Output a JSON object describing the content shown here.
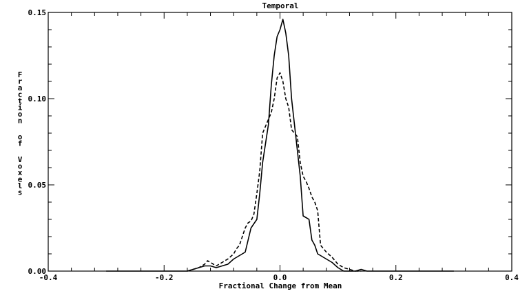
{
  "chart_data": {
    "type": "line",
    "title": "Temporal",
    "xlabel": "Fractional Change from Mean",
    "ylabel": "Fraction of Voxels",
    "xlim": [
      -0.4,
      0.4
    ],
    "ylim": [
      0.0,
      0.15
    ],
    "x_ticks": [
      -0.4,
      -0.2,
      0.0,
      0.2,
      0.4
    ],
    "x_tick_labels": [
      "-0.4",
      "-0.2",
      "0.0",
      "0.2",
      "0.4"
    ],
    "y_ticks": [
      0.0,
      0.05,
      0.1,
      0.15
    ],
    "y_tick_labels": [
      "0.00",
      "0.05",
      "0.10",
      "0.15"
    ],
    "grid": false,
    "series": [
      {
        "style": "solid",
        "x": [
          -0.3,
          -0.28,
          -0.26,
          -0.24,
          -0.22,
          -0.2,
          -0.18,
          -0.16,
          -0.15,
          -0.14,
          -0.13,
          -0.12,
          -0.11,
          -0.1,
          -0.09,
          -0.08,
          -0.075,
          -0.07,
          -0.06,
          -0.055,
          -0.05,
          -0.04,
          -0.035,
          -0.03,
          -0.02,
          -0.015,
          -0.01,
          -0.005,
          0.0,
          0.005,
          0.01,
          0.015,
          0.02,
          0.03,
          0.035,
          0.04,
          0.045,
          0.05,
          0.055,
          0.06,
          0.065,
          0.07,
          0.08,
          0.09,
          0.1,
          0.11,
          0.12,
          0.13,
          0.14,
          0.15,
          0.16,
          0.18,
          0.2,
          0.22,
          0.24,
          0.26,
          0.28,
          0.3
        ],
        "y": [
          0.0,
          0.0,
          0.0,
          0.0,
          0.0,
          0.0,
          0.0,
          0.0,
          0.001,
          0.002,
          0.003,
          0.003,
          0.002,
          0.003,
          0.004,
          0.007,
          0.008,
          0.009,
          0.011,
          0.018,
          0.025,
          0.03,
          0.045,
          0.063,
          0.085,
          0.108,
          0.125,
          0.136,
          0.14,
          0.146,
          0.138,
          0.125,
          0.1,
          0.07,
          0.055,
          0.032,
          0.031,
          0.03,
          0.018,
          0.015,
          0.01,
          0.009,
          0.007,
          0.005,
          0.002,
          0.0,
          0.0,
          0.0,
          0.001,
          0.0,
          0.0,
          0.0,
          0.0,
          0.0,
          0.0,
          0.0,
          0.0,
          0.0
        ]
      },
      {
        "style": "dashed",
        "x": [
          -0.16,
          -0.15,
          -0.14,
          -0.13,
          -0.125,
          -0.12,
          -0.11,
          -0.1,
          -0.09,
          -0.08,
          -0.075,
          -0.07,
          -0.065,
          -0.06,
          -0.055,
          -0.05,
          -0.045,
          -0.04,
          -0.035,
          -0.03,
          -0.02,
          -0.015,
          -0.01,
          -0.005,
          0.0,
          0.005,
          0.01,
          0.015,
          0.02,
          0.03,
          0.035,
          0.04,
          0.045,
          0.05,
          0.055,
          0.06,
          0.065,
          0.07,
          0.08,
          0.09,
          0.1,
          0.11,
          0.12,
          0.13,
          0.14
        ],
        "y": [
          0.0,
          0.001,
          0.002,
          0.004,
          0.006,
          0.005,
          0.003,
          0.005,
          0.007,
          0.01,
          0.013,
          0.015,
          0.02,
          0.025,
          0.028,
          0.029,
          0.033,
          0.045,
          0.058,
          0.08,
          0.088,
          0.092,
          0.1,
          0.112,
          0.115,
          0.11,
          0.1,
          0.095,
          0.082,
          0.078,
          0.063,
          0.055,
          0.052,
          0.048,
          0.043,
          0.04,
          0.035,
          0.015,
          0.011,
          0.008,
          0.004,
          0.002,
          0.001,
          0.0,
          0.0
        ]
      }
    ]
  }
}
